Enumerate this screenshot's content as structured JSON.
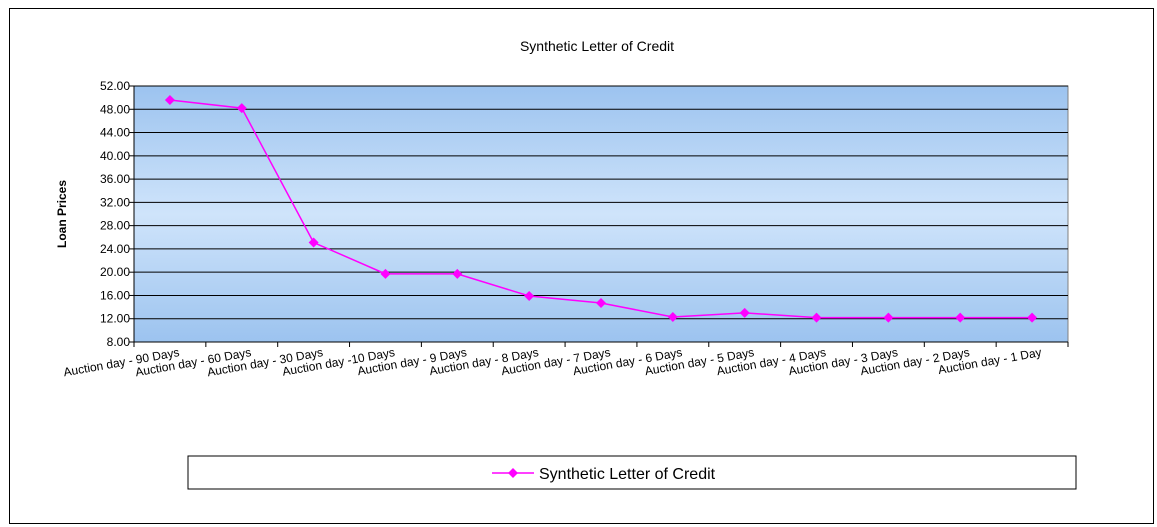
{
  "chart_data": {
    "type": "line",
    "title": "Synthetic Letter of Credit",
    "xlabel": "",
    "ylabel": "Loan Prices",
    "ylim": [
      8,
      52
    ],
    "yticks": [
      "8.00",
      "12.00",
      "16.00",
      "20.00",
      "24.00",
      "28.00",
      "32.00",
      "36.00",
      "40.00",
      "44.00",
      "48.00",
      "52.00"
    ],
    "categories": [
      "Auction day - 90 Days",
      "Auction day - 60 Days",
      "Auction day - 30 Days",
      "Auction day -10 Days",
      "Auction day - 9 Days",
      "Auction day - 8 Days",
      "Auction day - 7 Days",
      "Auction day - 6 Days",
      "Auction day - 5 Days",
      "Auction day - 4 Days",
      "Auction day - 3 Days",
      "Auction day - 2 Days",
      "Auction day - 1 Day"
    ],
    "series": [
      {
        "name": "Synthetic Letter of Credit",
        "color": "#ff00ff",
        "values": [
          49.6,
          48.2,
          25.1,
          19.7,
          19.7,
          15.9,
          14.7,
          12.3,
          13.0,
          12.2,
          12.2,
          12.2,
          12.2
        ]
      }
    ],
    "grid": true,
    "legend_position": "bottom",
    "background_gradient": [
      "#9cc3ef",
      "#cfe4fb"
    ]
  }
}
